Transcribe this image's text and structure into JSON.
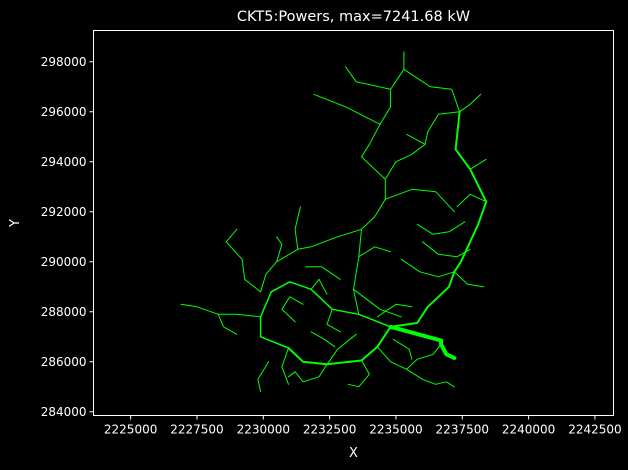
{
  "chart_data": {
    "type": "line",
    "title": "CKT5:Powers, max=7241.68 kW",
    "xlabel": "X",
    "ylabel": "Y",
    "xlim": [
      2223600,
      2243200
    ],
    "ylim": [
      283850,
      299250
    ],
    "xticks": [
      {
        "value": 2225000,
        "label": "2225000"
      },
      {
        "value": 2227500,
        "label": "2227500"
      },
      {
        "value": 2230000,
        "label": "2230000"
      },
      {
        "value": 2232500,
        "label": "2232500"
      },
      {
        "value": 2235000,
        "label": "2235000"
      },
      {
        "value": 2237500,
        "label": "2237500"
      },
      {
        "value": 2240000,
        "label": "2240000"
      },
      {
        "value": 2242500,
        "label": "2242500"
      }
    ],
    "yticks": [
      {
        "value": 284000,
        "label": "284000"
      },
      {
        "value": 286000,
        "label": "286000"
      },
      {
        "value": 288000,
        "label": "288000"
      },
      {
        "value": 290000,
        "label": "290000"
      },
      {
        "value": 292000,
        "label": "292000"
      },
      {
        "value": 294000,
        "label": "294000"
      },
      {
        "value": 296000,
        "label": "296000"
      },
      {
        "value": 298000,
        "label": "298000"
      }
    ],
    "grid": false,
    "colors": {
      "background": "#000000",
      "axes": "#ffffff",
      "line": "#00ff00"
    },
    "series": [
      {
        "width": 4,
        "points": [
          [
            2237200,
            286150
          ],
          [
            2236900,
            286300
          ],
          [
            2236700,
            286700
          ],
          [
            2236700,
            286850
          ],
          [
            2234800,
            287400
          ]
        ]
      },
      {
        "width": 2,
        "points": [
          [
            2234800,
            287400
          ],
          [
            2234300,
            286600
          ],
          [
            2233700,
            286050
          ],
          [
            2232400,
            285900
          ],
          [
            2231500,
            286000
          ],
          [
            2230950,
            286550
          ]
        ]
      },
      {
        "width": 2,
        "points": [
          [
            2234800,
            287400
          ],
          [
            2235800,
            287550
          ],
          [
            2236200,
            288200
          ],
          [
            2237000,
            289000
          ],
          [
            2237200,
            289600
          ],
          [
            2237450,
            290000
          ],
          [
            2238100,
            291500
          ],
          [
            2238400,
            292400
          ],
          [
            2237800,
            293700
          ],
          [
            2237250,
            294500
          ],
          [
            2237400,
            296000
          ]
        ]
      },
      {
        "width": 1.5,
        "points": [
          [
            2234800,
            287400
          ],
          [
            2233600,
            287900
          ],
          [
            2232600,
            288100
          ],
          [
            2231800,
            288900
          ],
          [
            2231000,
            289200
          ],
          [
            2230300,
            288800
          ]
        ]
      },
      {
        "width": 1.5,
        "points": [
          [
            2230300,
            288800
          ],
          [
            2229900,
            287800
          ],
          [
            2229900,
            287000
          ],
          [
            2230950,
            286550
          ]
        ]
      },
      {
        "width": 1,
        "points": [
          [
            2233600,
            287900
          ],
          [
            2233400,
            288900
          ],
          [
            2233600,
            290200
          ],
          [
            2233700,
            291300
          ]
        ]
      },
      {
        "width": 1,
        "points": [
          [
            2233700,
            291300
          ],
          [
            2234200,
            291800
          ],
          [
            2234600,
            292500
          ],
          [
            2234600,
            293300
          ],
          [
            2235000,
            294000
          ],
          [
            2235600,
            294300
          ],
          [
            2236100,
            294700
          ],
          [
            2236200,
            295200
          ]
        ]
      },
      {
        "width": 1,
        "points": [
          [
            2233700,
            291300
          ],
          [
            2232800,
            291000
          ],
          [
            2231800,
            290600
          ],
          [
            2231300,
            290500
          ],
          [
            2230500,
            290000
          ],
          [
            2230100,
            289500
          ],
          [
            2229900,
            288800
          ]
        ]
      },
      {
        "width": 1,
        "points": [
          [
            2231300,
            290500
          ],
          [
            2231200,
            291300
          ],
          [
            2231400,
            292200
          ]
        ]
      },
      {
        "width": 1,
        "points": [
          [
            2230500,
            290000
          ],
          [
            2230700,
            290700
          ],
          [
            2230500,
            291000
          ]
        ]
      },
      {
        "width": 1,
        "points": [
          [
            2229900,
            288800
          ],
          [
            2229300,
            289300
          ],
          [
            2229200,
            290100
          ],
          [
            2228600,
            290800
          ],
          [
            2229000,
            291300
          ]
        ]
      },
      {
        "width": 1,
        "points": [
          [
            2229900,
            287800
          ],
          [
            2229000,
            287900
          ],
          [
            2228300,
            287900
          ],
          [
            2227500,
            288200
          ],
          [
            2226900,
            288300
          ]
        ]
      },
      {
        "width": 1,
        "points": [
          [
            2234600,
            292500
          ],
          [
            2235600,
            292900
          ],
          [
            2236500,
            292800
          ],
          [
            2237200,
            292000
          ]
        ]
      },
      {
        "width": 1,
        "points": [
          [
            2235200,
            290100
          ],
          [
            2235900,
            289600
          ],
          [
            2236600,
            289400
          ],
          [
            2237200,
            289600
          ]
        ]
      },
      {
        "width": 1,
        "points": [
          [
            2236000,
            290800
          ],
          [
            2236600,
            290300
          ],
          [
            2237300,
            290200
          ],
          [
            2237800,
            290500
          ]
        ]
      },
      {
        "width": 1,
        "points": [
          [
            2235800,
            291500
          ],
          [
            2236400,
            291100
          ],
          [
            2237000,
            291200
          ],
          [
            2237600,
            291600
          ]
        ]
      },
      {
        "width": 1,
        "points": [
          [
            2237300,
            292200
          ],
          [
            2237800,
            292700
          ],
          [
            2238400,
            292400
          ]
        ]
      },
      {
        "width": 1,
        "points": [
          [
            2234600,
            293300
          ],
          [
            2233700,
            294200
          ],
          [
            2234000,
            294700
          ]
        ]
      },
      {
        "width": 1,
        "points": [
          [
            2234000,
            294700
          ],
          [
            2234400,
            295500
          ],
          [
            2234800,
            296200
          ],
          [
            2234800,
            296900
          ],
          [
            2235300,
            297700
          ],
          [
            2235300,
            298400
          ]
        ]
      },
      {
        "width": 1,
        "points": [
          [
            2234400,
            295500
          ],
          [
            2233100,
            296200
          ],
          [
            2231900,
            296700
          ]
        ]
      },
      {
        "width": 1,
        "points": [
          [
            2234800,
            296900
          ],
          [
            2233500,
            297200
          ],
          [
            2233100,
            297800
          ]
        ]
      },
      {
        "width": 1,
        "points": [
          [
            2235300,
            297700
          ],
          [
            2236300,
            297000
          ],
          [
            2237100,
            296900
          ],
          [
            2237400,
            296000
          ]
        ]
      },
      {
        "width": 1,
        "points": [
          [
            2236200,
            295200
          ],
          [
            2236600,
            295900
          ],
          [
            2237400,
            296000
          ]
        ]
      },
      {
        "width": 1,
        "points": [
          [
            2237400,
            296000
          ],
          [
            2237800,
            296300
          ],
          [
            2238200,
            296700
          ]
        ]
      },
      {
        "width": 1,
        "points": [
          [
            2232400,
            285900
          ],
          [
            2232100,
            285400
          ],
          [
            2231500,
            285200
          ],
          [
            2231200,
            285600
          ],
          [
            2230950,
            285400
          ]
        ]
      },
      {
        "width": 1,
        "points": [
          [
            2233700,
            286050
          ],
          [
            2234000,
            285500
          ],
          [
            2233600,
            285000
          ],
          [
            2233200,
            285100
          ]
        ]
      },
      {
        "width": 1,
        "points": [
          [
            2234300,
            286600
          ],
          [
            2234800,
            286000
          ],
          [
            2235400,
            285700
          ],
          [
            2236000,
            285300
          ],
          [
            2236500,
            285100
          ]
        ]
      },
      {
        "width": 1,
        "points": [
          [
            2235400,
            285700
          ],
          [
            2235800,
            286100
          ],
          [
            2236400,
            286300
          ],
          [
            2236700,
            286700
          ]
        ]
      },
      {
        "width": 1,
        "points": [
          [
            2234900,
            286900
          ],
          [
            2235500,
            286500
          ],
          [
            2235600,
            286100
          ]
        ]
      },
      {
        "width": 1,
        "points": [
          [
            2230950,
            286550
          ],
          [
            2230700,
            285800
          ],
          [
            2230950,
            285100
          ]
        ]
      },
      {
        "width": 1,
        "points": [
          [
            2231800,
            288900
          ],
          [
            2232100,
            289300
          ],
          [
            2232400,
            288700
          ]
        ]
      },
      {
        "width": 1,
        "points": [
          [
            2232600,
            288100
          ],
          [
            2232400,
            287500
          ],
          [
            2232900,
            287200
          ]
        ]
      },
      {
        "width": 1,
        "points": [
          [
            2231500,
            288300
          ],
          [
            2231000,
            288600
          ],
          [
            2230700,
            288100
          ],
          [
            2231200,
            287600
          ]
        ]
      },
      {
        "width": 1,
        "points": [
          [
            2231800,
            287200
          ],
          [
            2232300,
            286900
          ],
          [
            2232700,
            286600
          ]
        ]
      },
      {
        "width": 1,
        "points": [
          [
            2232900,
            289300
          ],
          [
            2232200,
            289800
          ],
          [
            2231600,
            289800
          ]
        ]
      },
      {
        "width": 1,
        "points": [
          [
            2233400,
            288900
          ],
          [
            2234400,
            288100
          ],
          [
            2235200,
            287800
          ]
        ]
      },
      {
        "width": 1,
        "points": [
          [
            2234300,
            287800
          ],
          [
            2235000,
            288300
          ],
          [
            2235600,
            288200
          ]
        ]
      },
      {
        "width": 1,
        "points": [
          [
            2233600,
            290200
          ],
          [
            2234200,
            290600
          ],
          [
            2234800,
            290400
          ]
        ]
      },
      {
        "width": 1,
        "points": [
          [
            2228300,
            287900
          ],
          [
            2228500,
            287400
          ],
          [
            2229000,
            287100
          ]
        ]
      },
      {
        "width": 1,
        "points": [
          [
            2230200,
            286000
          ],
          [
            2229800,
            285300
          ],
          [
            2229900,
            284800
          ]
        ]
      },
      {
        "width": 1,
        "points": [
          [
            2236500,
            285100
          ],
          [
            2236900,
            285200
          ],
          [
            2237200,
            285000
          ]
        ]
      },
      {
        "width": 1,
        "points": [
          [
            2237200,
            289600
          ],
          [
            2237700,
            289100
          ],
          [
            2238300,
            289000
          ]
        ]
      },
      {
        "width": 1,
        "points": [
          [
            2237800,
            293700
          ],
          [
            2238400,
            294100
          ]
        ]
      },
      {
        "width": 1,
        "points": [
          [
            2236100,
            294700
          ],
          [
            2235400,
            295100
          ]
        ]
      },
      {
        "width": 1,
        "points": [
          [
            2232400,
            285900
          ],
          [
            2232800,
            286500
          ],
          [
            2233500,
            287100
          ]
        ]
      }
    ]
  }
}
